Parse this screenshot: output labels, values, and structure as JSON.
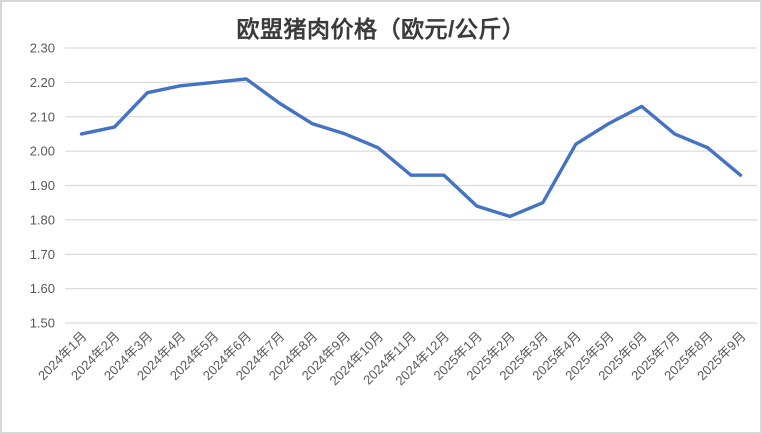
{
  "window": {
    "background_color": "#ffffff",
    "border_color": "#d7d7d7"
  },
  "chart_data": {
    "type": "line",
    "title": "欧盟猪肉价格（欧元/公斤）",
    "xlabel": "",
    "ylabel": "",
    "categories": [
      "2024年1月",
      "2024年2月",
      "2024年3月",
      "2024年4月",
      "2024年5月",
      "2024年6月",
      "2024年7月",
      "2024年8月",
      "2024年9月",
      "2024年10月",
      "2024年11月",
      "2024年12月",
      "2025年1月",
      "2025年2月",
      "2025年3月",
      "2025年4月",
      "2025年5月",
      "2025年6月",
      "2025年7月",
      "2025年8月",
      "2025年9月"
    ],
    "series": [
      {
        "name": "欧盟猪肉价格",
        "values": [
          2.05,
          2.07,
          2.17,
          2.19,
          2.2,
          2.21,
          2.14,
          2.08,
          2.05,
          2.01,
          1.93,
          1.93,
          1.84,
          1.81,
          1.85,
          2.02,
          2.08,
          2.13,
          2.05,
          2.01,
          1.93
        ]
      }
    ],
    "ylim": [
      1.5,
      2.3
    ],
    "ytick_step": 0.1,
    "ytick_labels": [
      "2.30",
      "2.20",
      "2.10",
      "2.00",
      "1.90",
      "1.80",
      "1.70",
      "1.60",
      "1.50"
    ],
    "grid": true,
    "legend": false,
    "x_label_rotation_deg": 45,
    "line_color": "#4472C4",
    "gridline_color": "#dcdcdc",
    "axis_label_color": "#595959",
    "title_color": "#3b3b3b"
  }
}
